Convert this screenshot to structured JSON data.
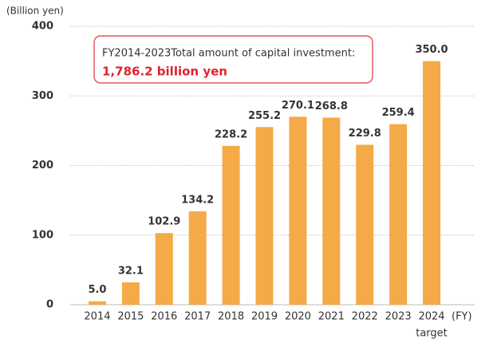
{
  "chart_data": {
    "type": "bar",
    "y_axis_label": "(Billion yen)",
    "x_axis_label": "(FY)",
    "categories": [
      "2014",
      "2015",
      "2016",
      "2017",
      "2018",
      "2019",
      "2020",
      "2021",
      "2022",
      "2023",
      "2024"
    ],
    "category_note": "target",
    "values": [
      5.0,
      32.1,
      102.9,
      134.2,
      228.2,
      255.2,
      270.1,
      268.8,
      229.8,
      259.4,
      350.0
    ],
    "value_labels": [
      "5.0",
      "32.1",
      "102.9",
      "134.2",
      "228.2",
      "255.2",
      "270.1",
      "268.8",
      "229.8",
      "259.4",
      "350.0"
    ],
    "color": "#f5aa48",
    "ylim": [
      0,
      400
    ],
    "yticks": [
      0,
      100,
      200,
      300,
      400
    ],
    "grid": true,
    "annotation": {
      "title": "FY2014-2023Total amount of capital investment:",
      "value": "1,786.2 billion yen"
    }
  }
}
